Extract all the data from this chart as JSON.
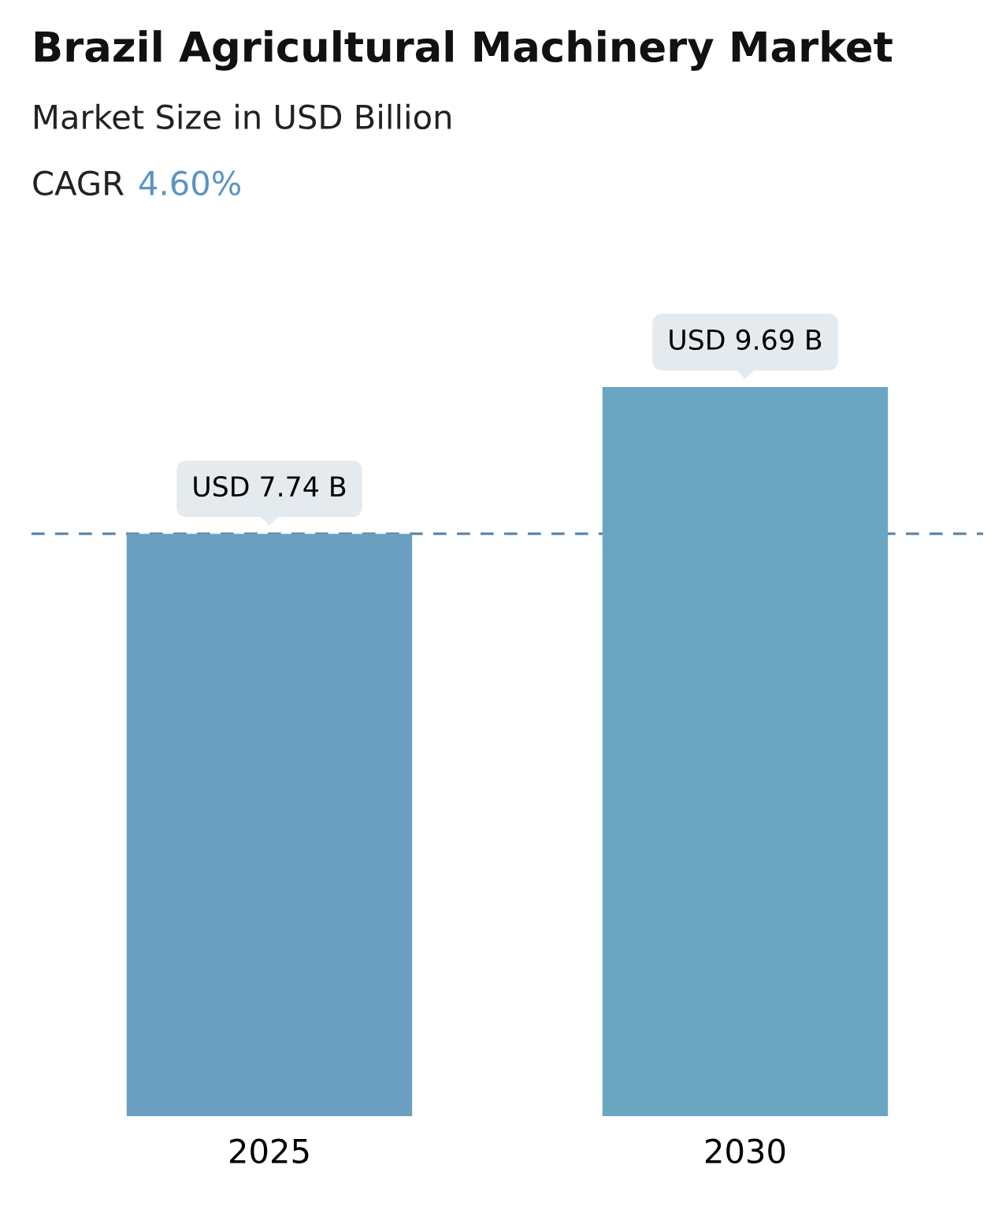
{
  "chart_data": {
    "type": "bar",
    "title": "Brazil Agricultural Machinery Market",
    "subtitle": "Market Size in USD Billion",
    "annotations": [
      "CAGR 4.60%"
    ],
    "categories": [
      "2025",
      "2030"
    ],
    "values": [
      7.74,
      9.69
    ],
    "value_labels": [
      "USD 7.74 B",
      "USD 9.69 B"
    ],
    "colors": [
      "#6b9fc0",
      "#6aa6c2"
    ],
    "ref_lines": [
      {
        "axis": "y",
        "value": 7.74,
        "label": null,
        "color": "#5a86a8",
        "line_style": "dashed"
      }
    ],
    "grid": false
  }
}
